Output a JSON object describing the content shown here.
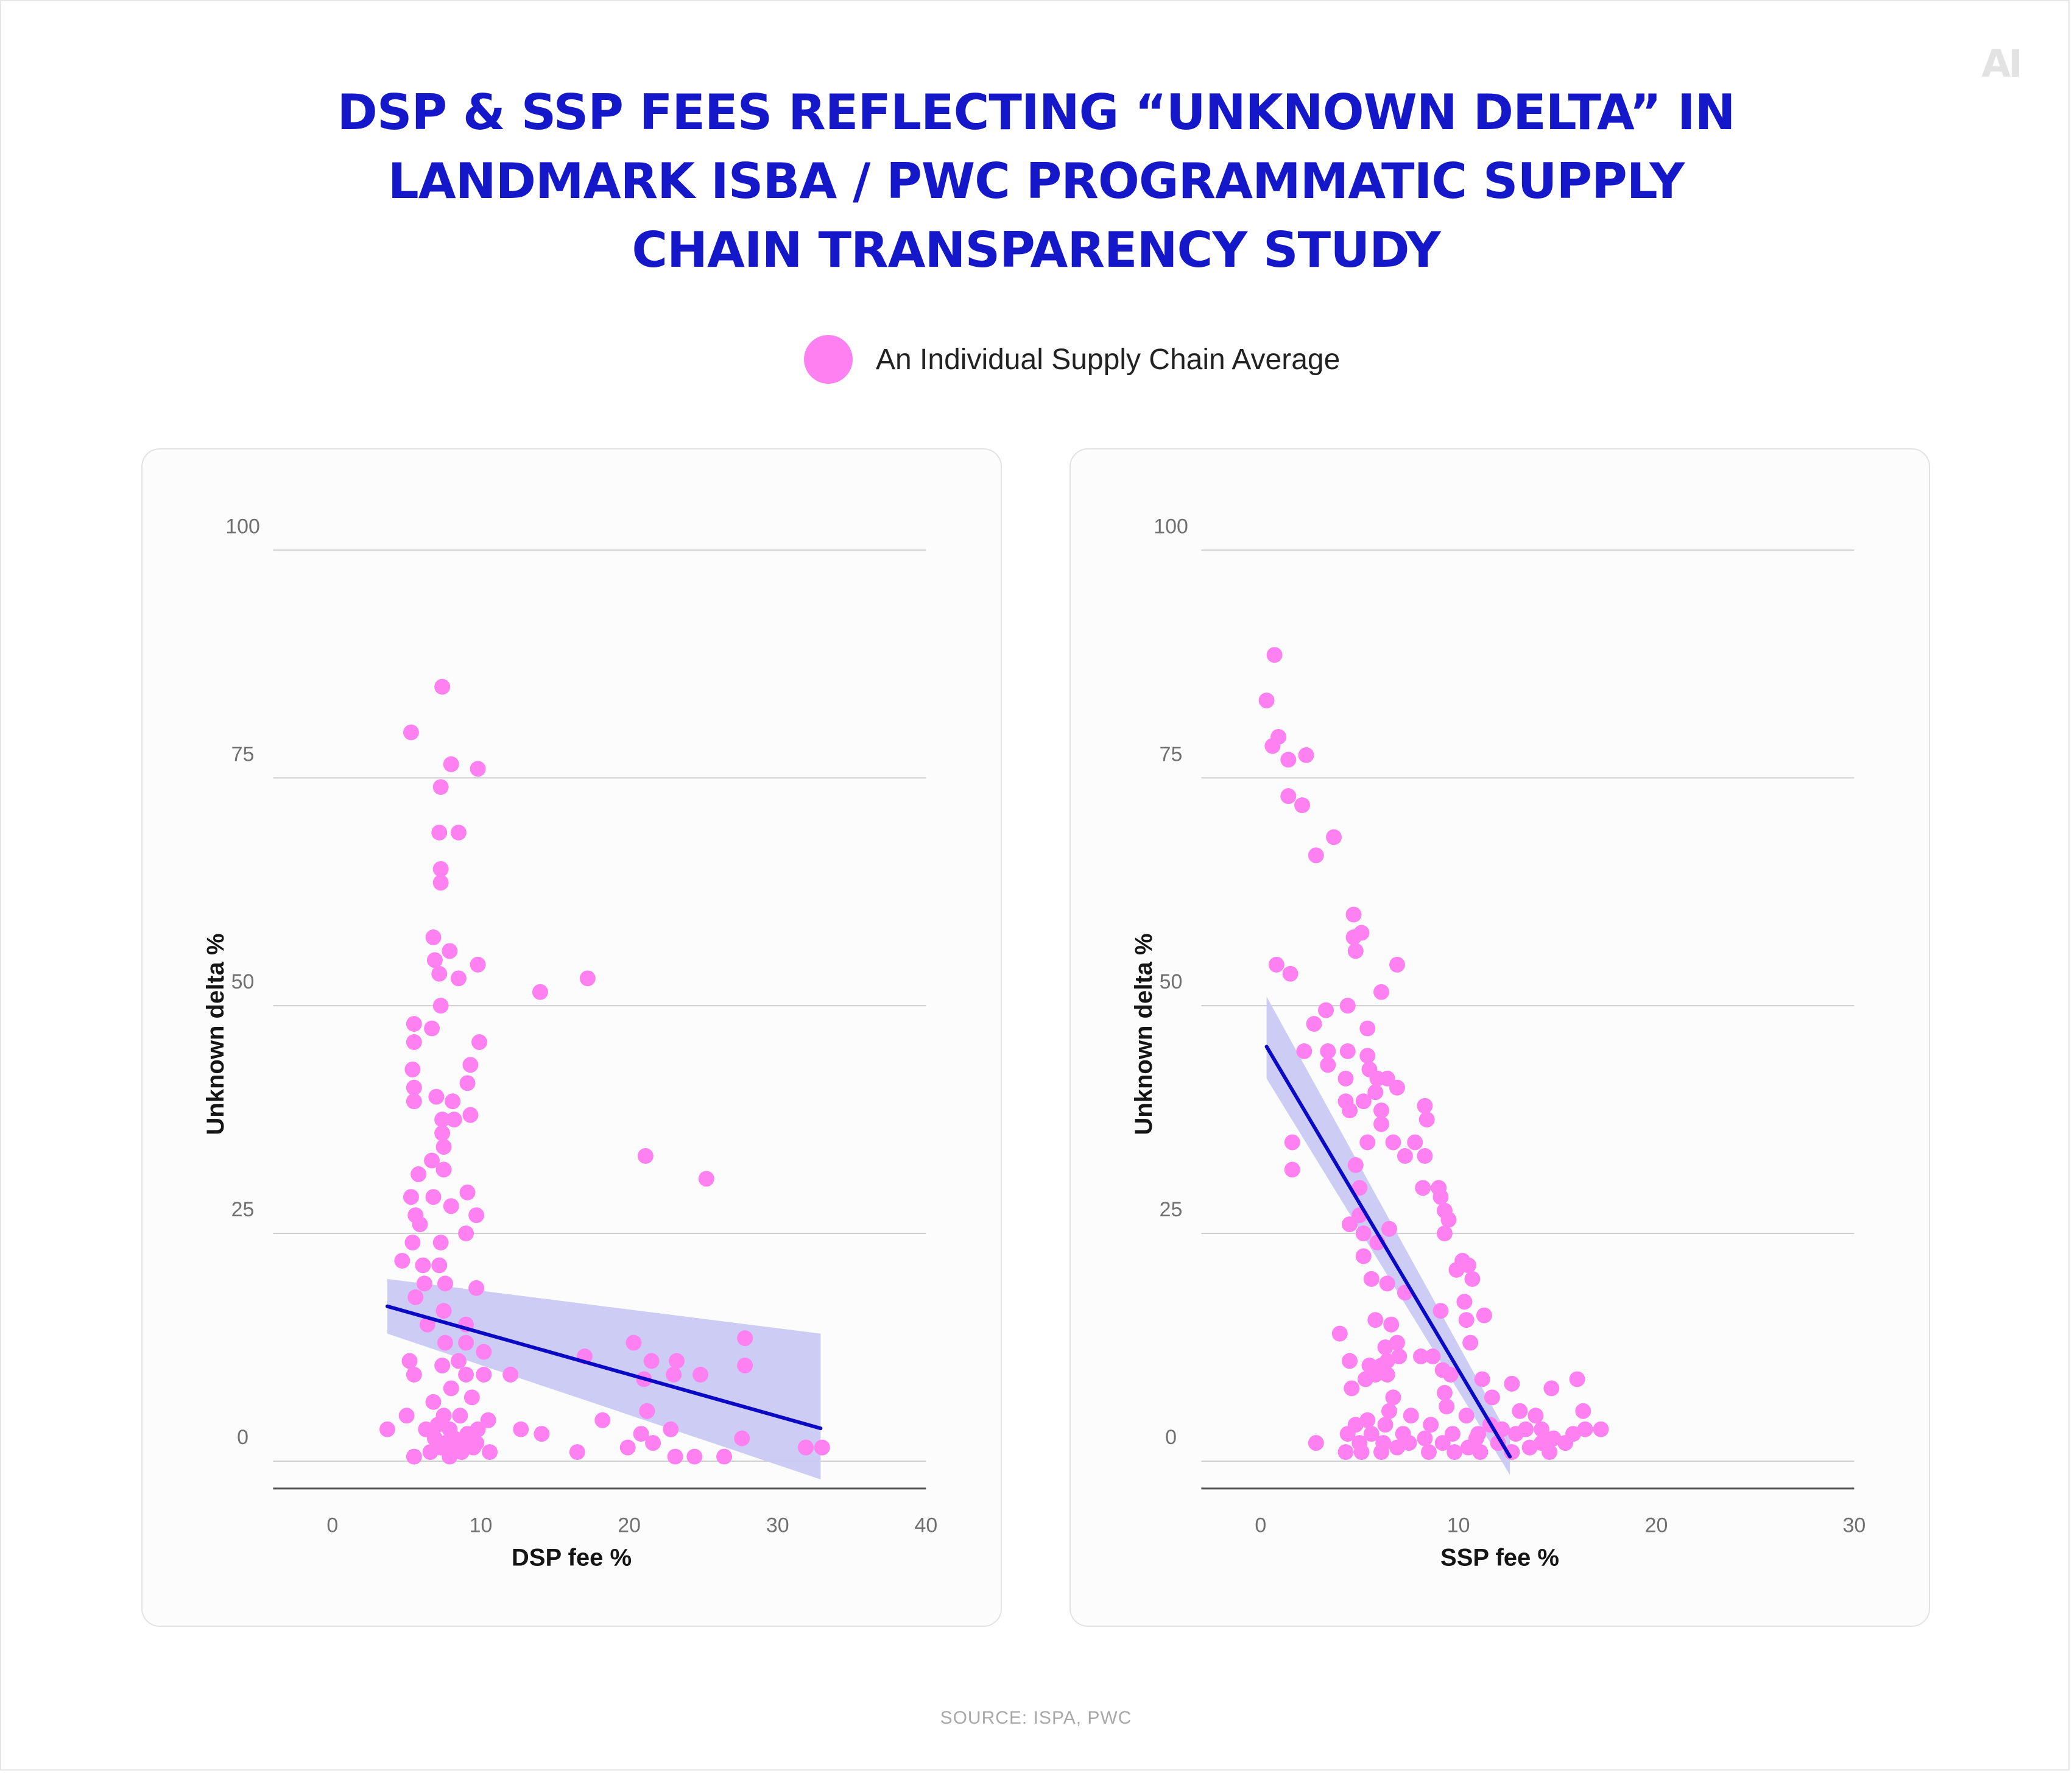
{
  "brand": {
    "logo_text": "AI",
    "logo_color": "#e3e3e3"
  },
  "title": {
    "lines": [
      "DSP & SSP FEES REFLECTING “UNKNOWN DELTA” IN",
      "LANDMARK ISBA / PWC PROGRAMMATIC SUPPLY",
      "CHAIN TRANSPARENCY STUDY"
    ],
    "color": "#1418c9"
  },
  "legend": {
    "label": "An Individual Supply Chain Average",
    "color": "#ff80f0"
  },
  "source": "SOURCE: ISPA, PWC",
  "colors": {
    "point": "#ff80f0",
    "trend_line": "#0a0ac4",
    "confidence_band": "#c9c9f3",
    "grid": "#cfcfcf",
    "tick_text": "#707070"
  },
  "chart_data": [
    {
      "type": "scatter",
      "xlabel": "DSP fee %",
      "ylabel": "Unknown delta %",
      "xlim": [
        -4,
        40
      ],
      "ylim": [
        -3,
        100
      ],
      "xticks": [
        0,
        10,
        20,
        30,
        40
      ],
      "yticks": [
        0,
        25,
        50,
        75,
        100
      ],
      "grid": "horizontal",
      "trend": {
        "x": [
          3.7,
          32.9
        ],
        "y": [
          17.0,
          3.6
        ]
      },
      "band": {
        "x": [
          3.7,
          32.9
        ],
        "upper": [
          20.0,
          14.0
        ],
        "lower": [
          14.0,
          -2.0
        ]
      },
      "points": [
        [
          7.4,
          85
        ],
        [
          5.3,
          80
        ],
        [
          8.0,
          76.5
        ],
        [
          9.8,
          76
        ],
        [
          7.3,
          74
        ],
        [
          8.5,
          69
        ],
        [
          7.2,
          69
        ],
        [
          7.3,
          65
        ],
        [
          7.3,
          63.5
        ],
        [
          6.8,
          57.5
        ],
        [
          7.9,
          56
        ],
        [
          6.9,
          55
        ],
        [
          9.8,
          54.5
        ],
        [
          7.2,
          53.5
        ],
        [
          8.5,
          53
        ],
        [
          14.0,
          51.5
        ],
        [
          17.2,
          53
        ],
        [
          7.3,
          50
        ],
        [
          5.5,
          48
        ],
        [
          6.7,
          47.5
        ],
        [
          5.5,
          46
        ],
        [
          9.9,
          46
        ],
        [
          5.4,
          43
        ],
        [
          9.3,
          43.5
        ],
        [
          5.5,
          41
        ],
        [
          9.1,
          41.5
        ],
        [
          5.5,
          39.5
        ],
        [
          7.0,
          40
        ],
        [
          8.1,
          39.5
        ],
        [
          9.3,
          38
        ],
        [
          7.4,
          37.5
        ],
        [
          8.2,
          37.5
        ],
        [
          7.4,
          36
        ],
        [
          7.5,
          34.5
        ],
        [
          6.7,
          33
        ],
        [
          21.1,
          33.5
        ],
        [
          5.8,
          31.5
        ],
        [
          7.5,
          32
        ],
        [
          25.2,
          31
        ],
        [
          9.1,
          29.5
        ],
        [
          5.3,
          29
        ],
        [
          6.8,
          29
        ],
        [
          8.0,
          28
        ],
        [
          5.6,
          27
        ],
        [
          9.7,
          27
        ],
        [
          5.9,
          26
        ],
        [
          9.0,
          25
        ],
        [
          5.4,
          24
        ],
        [
          7.3,
          24
        ],
        [
          4.7,
          22
        ],
        [
          6.1,
          21.5
        ],
        [
          7.2,
          21.5
        ],
        [
          6.2,
          19.5
        ],
        [
          7.6,
          19.5
        ],
        [
          9.7,
          19
        ],
        [
          5.6,
          18
        ],
        [
          7.5,
          16.5
        ],
        [
          9.0,
          15
        ],
        [
          6.4,
          15
        ],
        [
          7.6,
          13
        ],
        [
          9.0,
          13
        ],
        [
          20.3,
          13
        ],
        [
          27.8,
          13.5
        ],
        [
          10.2,
          12
        ],
        [
          8.5,
          11
        ],
        [
          5.2,
          11
        ],
        [
          17.0,
          11.5
        ],
        [
          21.5,
          11
        ],
        [
          23.2,
          11
        ],
        [
          7.4,
          10.5
        ],
        [
          27.8,
          10.5
        ],
        [
          5.5,
          9.5
        ],
        [
          9.0,
          9.5
        ],
        [
          10.2,
          9.5
        ],
        [
          12.0,
          9.5
        ],
        [
          21.0,
          9
        ],
        [
          23.0,
          9.5
        ],
        [
          24.8,
          9.5
        ],
        [
          8.0,
          8
        ],
        [
          6.8,
          6.5
        ],
        [
          9.4,
          7
        ],
        [
          21.2,
          5.5
        ],
        [
          5.0,
          5
        ],
        [
          7.5,
          5
        ],
        [
          8.6,
          5
        ],
        [
          10.5,
          4.5
        ],
        [
          18.2,
          4.5
        ],
        [
          3.7,
          3.5
        ],
        [
          6.3,
          3.5
        ],
        [
          7.1,
          4
        ],
        [
          7.9,
          3.5
        ],
        [
          9.1,
          3
        ],
        [
          9.8,
          3.5
        ],
        [
          12.7,
          3.5
        ],
        [
          14.1,
          3
        ],
        [
          22.8,
          3.5
        ],
        [
          20.8,
          3
        ],
        [
          6.9,
          2.5
        ],
        [
          7.6,
          2
        ],
        [
          8.2,
          2.5
        ],
        [
          8.9,
          2.5
        ],
        [
          27.6,
          2.5
        ],
        [
          9.7,
          2
        ],
        [
          19.9,
          1.5
        ],
        [
          21.6,
          2
        ],
        [
          6.6,
          1
        ],
        [
          7.3,
          1.5
        ],
        [
          8.0,
          1
        ],
        [
          8.7,
          1
        ],
        [
          9.5,
          1.5
        ],
        [
          10.6,
          1
        ],
        [
          16.5,
          1
        ],
        [
          23.1,
          0.5
        ],
        [
          24.4,
          0.5
        ],
        [
          26.4,
          0.5
        ],
        [
          31.9,
          1.5
        ],
        [
          33.0,
          1.5
        ],
        [
          5.5,
          0.5
        ],
        [
          7.9,
          0.5
        ],
        [
          8.6,
          1.5
        ]
      ]
    },
    {
      "type": "scatter",
      "xlabel": "SSP fee %",
      "ylabel": "Unknown delta %",
      "xlim": [
        -3,
        30
      ],
      "ylim": [
        -3,
        100
      ],
      "xticks": [
        0,
        10,
        20,
        30
      ],
      "yticks": [
        0,
        25,
        50,
        75,
        100
      ],
      "grid": "horizontal",
      "trend": {
        "x": [
          0.3,
          12.6
        ],
        "y": [
          45.5,
          0.5
        ]
      },
      "band": {
        "x": [
          0.3,
          12.6
        ],
        "upper": [
          51.0,
          2.5
        ],
        "lower": [
          42.0,
          -1.5
        ]
      },
      "points": [
        [
          0.7,
          88.5
        ],
        [
          0.3,
          83.5
        ],
        [
          0.9,
          79.5
        ],
        [
          0.6,
          78.5
        ],
        [
          2.3,
          77.5
        ],
        [
          1.4,
          77
        ],
        [
          1.4,
          73
        ],
        [
          2.1,
          72
        ],
        [
          3.7,
          68.5
        ],
        [
          2.8,
          66.5
        ],
        [
          4.7,
          60
        ],
        [
          5.1,
          58
        ],
        [
          4.7,
          57.5
        ],
        [
          4.8,
          56
        ],
        [
          0.8,
          54.5
        ],
        [
          1.5,
          53.5
        ],
        [
          6.9,
          54.5
        ],
        [
          6.1,
          51.5
        ],
        [
          4.4,
          50
        ],
        [
          3.3,
          49.5
        ],
        [
          2.7,
          48
        ],
        [
          5.4,
          47.5
        ],
        [
          2.2,
          45
        ],
        [
          3.4,
          45
        ],
        [
          4.4,
          45
        ],
        [
          5.4,
          44.5
        ],
        [
          3.4,
          43.5
        ],
        [
          5.5,
          43
        ],
        [
          4.3,
          42
        ],
        [
          5.9,
          42
        ],
        [
          6.4,
          42
        ],
        [
          6.9,
          41
        ],
        [
          5.8,
          40.5
        ],
        [
          4.3,
          39.5
        ],
        [
          5.2,
          39.5
        ],
        [
          8.3,
          39
        ],
        [
          4.5,
          38.5
        ],
        [
          6.1,
          38.5
        ],
        [
          8.4,
          37.5
        ],
        [
          6.1,
          37
        ],
        [
          1.6,
          35
        ],
        [
          5.4,
          35
        ],
        [
          6.7,
          35
        ],
        [
          7.8,
          35
        ],
        [
          7.3,
          33.5
        ],
        [
          8.3,
          33.5
        ],
        [
          4.8,
          32.5
        ],
        [
          1.6,
          32
        ],
        [
          5.0,
          30
        ],
        [
          8.2,
          30
        ],
        [
          9.0,
          30
        ],
        [
          9.1,
          29
        ],
        [
          9.3,
          27.5
        ],
        [
          5.0,
          27
        ],
        [
          9.5,
          26.5
        ],
        [
          4.5,
          26
        ],
        [
          6.5,
          25.5
        ],
        [
          5.2,
          25
        ],
        [
          9.3,
          25
        ],
        [
          5.9,
          24
        ],
        [
          5.2,
          22.5
        ],
        [
          10.2,
          22
        ],
        [
          10.5,
          21.5
        ],
        [
          9.9,
          21
        ],
        [
          10.7,
          20
        ],
        [
          5.6,
          20
        ],
        [
          6.4,
          19.5
        ],
        [
          7.3,
          18.5
        ],
        [
          10.3,
          17.5
        ],
        [
          9.1,
          16.5
        ],
        [
          10.4,
          15.5
        ],
        [
          11.3,
          16
        ],
        [
          5.8,
          15.5
        ],
        [
          6.6,
          15
        ],
        [
          4.0,
          14
        ],
        [
          10.6,
          13
        ],
        [
          6.3,
          12.5
        ],
        [
          6.9,
          13
        ],
        [
          7.0,
          11.5
        ],
        [
          8.1,
          11.5
        ],
        [
          8.7,
          11.5
        ],
        [
          6.4,
          11
        ],
        [
          4.5,
          11
        ],
        [
          5.5,
          10.5
        ],
        [
          6.1,
          10.5
        ],
        [
          9.2,
          10
        ],
        [
          5.8,
          9.5
        ],
        [
          6.4,
          9.5
        ],
        [
          5.3,
          9
        ],
        [
          11.2,
          9
        ],
        [
          9.6,
          9.5
        ],
        [
          12.7,
          8.5
        ],
        [
          14.7,
          8
        ],
        [
          16.0,
          9
        ],
        [
          4.6,
          8
        ],
        [
          9.3,
          7.5
        ],
        [
          11.7,
          7
        ],
        [
          6.7,
          7
        ],
        [
          9.4,
          6
        ],
        [
          13.1,
          5.5
        ],
        [
          16.3,
          5.5
        ],
        [
          6.5,
          5.5
        ],
        [
          7.6,
          5
        ],
        [
          10.4,
          5
        ],
        [
          13.9,
          5
        ],
        [
          5.4,
          4.5
        ],
        [
          4.8,
          4
        ],
        [
          6.3,
          4
        ],
        [
          8.6,
          4
        ],
        [
          11.6,
          4
        ],
        [
          12.2,
          3.5
        ],
        [
          13.4,
          3.5
        ],
        [
          14.2,
          3.5
        ],
        [
          16.4,
          3.5
        ],
        [
          17.2,
          3.5
        ],
        [
          15.8,
          3
        ],
        [
          4.4,
          3
        ],
        [
          5.6,
          3
        ],
        [
          7.2,
          3
        ],
        [
          9.7,
          3
        ],
        [
          11.0,
          3
        ],
        [
          12.9,
          3
        ],
        [
          8.3,
          2.5
        ],
        [
          10.9,
          2.5
        ],
        [
          14.8,
          2.5
        ],
        [
          2.8,
          2
        ],
        [
          5.0,
          2
        ],
        [
          6.2,
          2
        ],
        [
          7.5,
          2
        ],
        [
          9.2,
          2
        ],
        [
          12.0,
          2
        ],
        [
          14.2,
          2
        ],
        [
          15.4,
          2
        ],
        [
          4.3,
          1
        ],
        [
          5.1,
          1
        ],
        [
          6.1,
          1
        ],
        [
          8.5,
          1
        ],
        [
          9.8,
          1
        ],
        [
          11.1,
          1
        ],
        [
          12.7,
          1
        ],
        [
          14.6,
          1
        ],
        [
          6.9,
          1.5
        ],
        [
          10.5,
          1.5
        ],
        [
          13.6,
          1.5
        ]
      ]
    }
  ]
}
